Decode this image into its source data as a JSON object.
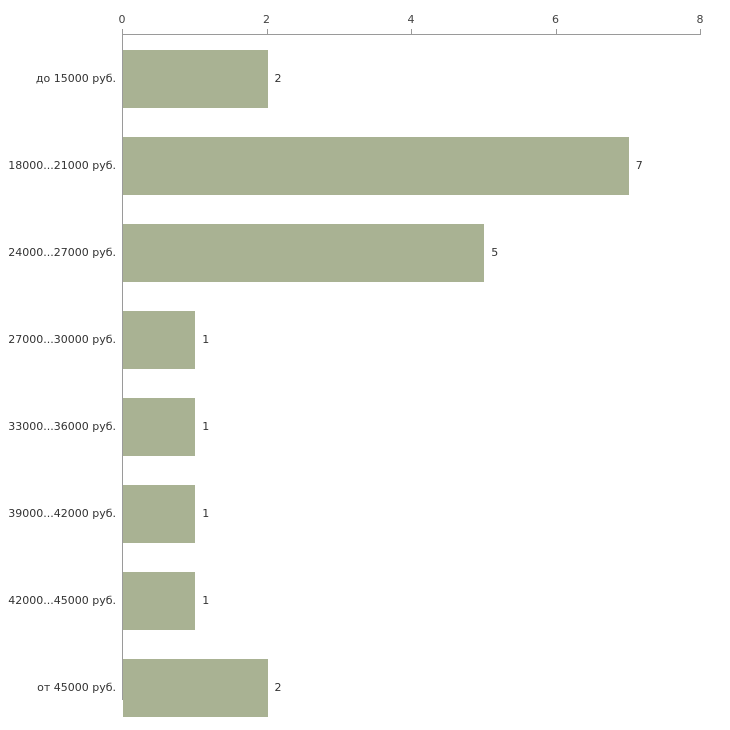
{
  "chart_data": {
    "type": "bar",
    "orientation": "horizontal",
    "title": "",
    "xlabel": "",
    "ylabel": "",
    "categories": [
      "до 15000 руб.",
      "18000...21000 руб.",
      "24000...27000 руб.",
      "27000...30000 руб.",
      "33000...36000 руб.",
      "39000...42000 руб.",
      "42000...45000 руб.",
      "от 45000 руб."
    ],
    "values": [
      2,
      7,
      5,
      1,
      1,
      1,
      1,
      2
    ],
    "data_labels": [
      "2",
      "7",
      "5",
      "1",
      "1",
      "1",
      "1",
      "2"
    ],
    "xlim": [
      0,
      8
    ],
    "x_ticks": [
      0,
      2,
      4,
      6,
      8
    ],
    "grid": false,
    "legend_position": "none",
    "bar_color": "#a9b293",
    "axis_color": "#9a9a9a",
    "label_color": "#333333",
    "background_color": "#ffffff"
  }
}
